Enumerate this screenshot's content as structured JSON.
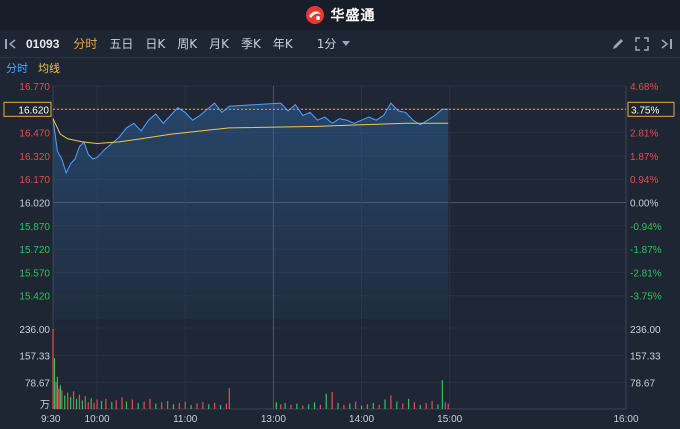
{
  "app": {
    "brand": "华盛通"
  },
  "toolbar": {
    "code": "01093",
    "periods": [
      "分时",
      "五日",
      "日K",
      "周K",
      "月K",
      "季K",
      "年K"
    ],
    "active_period": "分时",
    "interval": "1分"
  },
  "legend": {
    "price_label": "分时",
    "avg_label": "均线"
  },
  "colors": {
    "up": "#e84d4d",
    "down": "#32c25a",
    "flat": "#c9d1dc",
    "price_line": "#4da3ff",
    "avg_line": "#f3c44b",
    "last_box": "#f0a93a"
  },
  "chart_data": {
    "type": "line",
    "prev_close": 16.02,
    "price_axis": [
      "16.770",
      "16.620",
      "16.470",
      "16.320",
      "16.170",
      "16.020",
      "15.870",
      "15.720",
      "15.570",
      "15.420"
    ],
    "pct_axis": [
      "4.68%",
      "3.75%",
      "2.81%",
      "1.87%",
      "0.94%",
      "0.00%",
      "-0.94%",
      "-1.87%",
      "-2.81%",
      "-3.75%"
    ],
    "ylim": [
      15.27,
      16.77
    ],
    "last_price": "16.620",
    "last_pct": "3.75%",
    "volume_axis": [
      "236.00",
      "157.33",
      "78.67"
    ],
    "volume_unit": "万",
    "volume_max": 236,
    "time_labels": [
      "9:30",
      "10:00",
      "11:00",
      "13:00",
      "14:00",
      "15:00",
      "16:00"
    ],
    "price_series": [
      {
        "t": 0,
        "v": 16.56
      },
      {
        "t": 3,
        "v": 16.35
      },
      {
        "t": 6,
        "v": 16.3
      },
      {
        "t": 9,
        "v": 16.21
      },
      {
        "t": 12,
        "v": 16.27
      },
      {
        "t": 15,
        "v": 16.3
      },
      {
        "t": 18,
        "v": 16.38
      },
      {
        "t": 21,
        "v": 16.41
      },
      {
        "t": 24,
        "v": 16.33
      },
      {
        "t": 27,
        "v": 16.3
      },
      {
        "t": 30,
        "v": 16.31
      },
      {
        "t": 35,
        "v": 16.36
      },
      {
        "t": 40,
        "v": 16.4
      },
      {
        "t": 45,
        "v": 16.44
      },
      {
        "t": 50,
        "v": 16.5
      },
      {
        "t": 55,
        "v": 16.53
      },
      {
        "t": 60,
        "v": 16.48
      },
      {
        "t": 65,
        "v": 16.55
      },
      {
        "t": 70,
        "v": 16.59
      },
      {
        "t": 75,
        "v": 16.53
      },
      {
        "t": 80,
        "v": 16.58
      },
      {
        "t": 85,
        "v": 16.63
      },
      {
        "t": 90,
        "v": 16.6
      },
      {
        "t": 95,
        "v": 16.55
      },
      {
        "t": 100,
        "v": 16.58
      },
      {
        "t": 105,
        "v": 16.62
      },
      {
        "t": 110,
        "v": 16.66
      },
      {
        "t": 115,
        "v": 16.6
      },
      {
        "t": 120,
        "v": 16.64
      },
      {
        "t": 125,
        "v": 16.66
      },
      {
        "t": 130,
        "v": 16.61
      },
      {
        "t": 135,
        "v": 16.65
      },
      {
        "t": 140,
        "v": 16.58
      },
      {
        "t": 145,
        "v": 16.6
      },
      {
        "t": 150,
        "v": 16.55
      },
      {
        "t": 155,
        "v": 16.57
      },
      {
        "t": 160,
        "v": 16.53
      },
      {
        "t": 165,
        "v": 16.56
      },
      {
        "t": 170,
        "v": 16.55
      },
      {
        "t": 175,
        "v": 16.53
      },
      {
        "t": 180,
        "v": 16.55
      },
      {
        "t": 185,
        "v": 16.57
      },
      {
        "t": 190,
        "v": 16.55
      },
      {
        "t": 195,
        "v": 16.58
      },
      {
        "t": 200,
        "v": 16.66
      },
      {
        "t": 205,
        "v": 16.61
      },
      {
        "t": 210,
        "v": 16.6
      },
      {
        "t": 215,
        "v": 16.55
      },
      {
        "t": 220,
        "v": 16.52
      },
      {
        "t": 225,
        "v": 16.55
      },
      {
        "t": 230,
        "v": 16.58
      },
      {
        "t": 235,
        "v": 16.62
      },
      {
        "t": 239,
        "v": 16.62
      }
    ],
    "avg_series": [
      {
        "t": 0,
        "v": 16.56
      },
      {
        "t": 5,
        "v": 16.46
      },
      {
        "t": 10,
        "v": 16.43
      },
      {
        "t": 20,
        "v": 16.41
      },
      {
        "t": 30,
        "v": 16.4
      },
      {
        "t": 45,
        "v": 16.41
      },
      {
        "t": 60,
        "v": 16.43
      },
      {
        "t": 80,
        "v": 16.46
      },
      {
        "t": 100,
        "v": 16.48
      },
      {
        "t": 120,
        "v": 16.5
      },
      {
        "t": 150,
        "v": 16.51
      },
      {
        "t": 180,
        "v": 16.52
      },
      {
        "t": 210,
        "v": 16.53
      },
      {
        "t": 239,
        "v": 16.53
      }
    ],
    "volume_bars": [
      {
        "t": 0,
        "v": 236,
        "d": "up"
      },
      {
        "t": 1,
        "v": 150,
        "d": "down"
      },
      {
        "t": 2,
        "v": 80,
        "d": "up"
      },
      {
        "t": 3,
        "v": 95,
        "d": "down"
      },
      {
        "t": 4,
        "v": 60,
        "d": "up"
      },
      {
        "t": 5,
        "v": 70,
        "d": "down"
      },
      {
        "t": 6,
        "v": 55,
        "d": "up"
      },
      {
        "t": 8,
        "v": 40,
        "d": "down"
      },
      {
        "t": 10,
        "v": 48,
        "d": "up"
      },
      {
        "t": 12,
        "v": 35,
        "d": "down"
      },
      {
        "t": 14,
        "v": 52,
        "d": "up"
      },
      {
        "t": 16,
        "v": 30,
        "d": "down"
      },
      {
        "t": 18,
        "v": 42,
        "d": "up"
      },
      {
        "t": 20,
        "v": 25,
        "d": "down"
      },
      {
        "t": 22,
        "v": 38,
        "d": "up"
      },
      {
        "t": 24,
        "v": 20,
        "d": "up"
      },
      {
        "t": 26,
        "v": 32,
        "d": "down"
      },
      {
        "t": 28,
        "v": 18,
        "d": "up"
      },
      {
        "t": 30,
        "v": 28,
        "d": "up"
      },
      {
        "t": 33,
        "v": 24,
        "d": "down"
      },
      {
        "t": 36,
        "v": 30,
        "d": "up"
      },
      {
        "t": 40,
        "v": 20,
        "d": "down"
      },
      {
        "t": 43,
        "v": 26,
        "d": "up"
      },
      {
        "t": 47,
        "v": 34,
        "d": "up"
      },
      {
        "t": 50,
        "v": 22,
        "d": "down"
      },
      {
        "t": 54,
        "v": 28,
        "d": "up"
      },
      {
        "t": 58,
        "v": 18,
        "d": "down"
      },
      {
        "t": 62,
        "v": 22,
        "d": "up"
      },
      {
        "t": 66,
        "v": 30,
        "d": "up"
      },
      {
        "t": 70,
        "v": 16,
        "d": "down"
      },
      {
        "t": 74,
        "v": 20,
        "d": "up"
      },
      {
        "t": 78,
        "v": 24,
        "d": "up"
      },
      {
        "t": 82,
        "v": 14,
        "d": "down"
      },
      {
        "t": 86,
        "v": 18,
        "d": "up"
      },
      {
        "t": 90,
        "v": 22,
        "d": "up"
      },
      {
        "t": 94,
        "v": 12,
        "d": "down"
      },
      {
        "t": 98,
        "v": 16,
        "d": "up"
      },
      {
        "t": 102,
        "v": 20,
        "d": "up"
      },
      {
        "t": 106,
        "v": 14,
        "d": "down"
      },
      {
        "t": 110,
        "v": 18,
        "d": "up"
      },
      {
        "t": 114,
        "v": 12,
        "d": "down"
      },
      {
        "t": 118,
        "v": 16,
        "d": "up"
      },
      {
        "t": 120,
        "v": 62,
        "d": "up"
      },
      {
        "t": 122,
        "v": 20,
        "d": "down"
      },
      {
        "t": 125,
        "v": 14,
        "d": "up"
      },
      {
        "t": 128,
        "v": 18,
        "d": "down"
      },
      {
        "t": 132,
        "v": 12,
        "d": "up"
      },
      {
        "t": 136,
        "v": 16,
        "d": "down"
      },
      {
        "t": 140,
        "v": 10,
        "d": "up"
      },
      {
        "t": 144,
        "v": 14,
        "d": "down"
      },
      {
        "t": 148,
        "v": 20,
        "d": "down"
      },
      {
        "t": 152,
        "v": 12,
        "d": "up"
      },
      {
        "t": 156,
        "v": 45,
        "d": "down"
      },
      {
        "t": 160,
        "v": 50,
        "d": "up"
      },
      {
        "t": 164,
        "v": 18,
        "d": "down"
      },
      {
        "t": 168,
        "v": 12,
        "d": "up"
      },
      {
        "t": 172,
        "v": 16,
        "d": "down"
      },
      {
        "t": 176,
        "v": 22,
        "d": "up"
      },
      {
        "t": 180,
        "v": 10,
        "d": "down"
      },
      {
        "t": 184,
        "v": 14,
        "d": "up"
      },
      {
        "t": 188,
        "v": 18,
        "d": "down"
      },
      {
        "t": 192,
        "v": 12,
        "d": "up"
      },
      {
        "t": 196,
        "v": 28,
        "d": "down"
      },
      {
        "t": 200,
        "v": 40,
        "d": "up"
      },
      {
        "t": 204,
        "v": 22,
        "d": "down"
      },
      {
        "t": 208,
        "v": 16,
        "d": "up"
      },
      {
        "t": 212,
        "v": 30,
        "d": "down"
      },
      {
        "t": 216,
        "v": 20,
        "d": "up"
      },
      {
        "t": 220,
        "v": 12,
        "d": "down"
      },
      {
        "t": 224,
        "v": 18,
        "d": "up"
      },
      {
        "t": 228,
        "v": 24,
        "d": "up"
      },
      {
        "t": 232,
        "v": 14,
        "d": "down"
      },
      {
        "t": 235,
        "v": 85,
        "d": "down"
      },
      {
        "t": 237,
        "v": 20,
        "d": "up"
      },
      {
        "t": 239,
        "v": 16,
        "d": "up"
      }
    ]
  }
}
